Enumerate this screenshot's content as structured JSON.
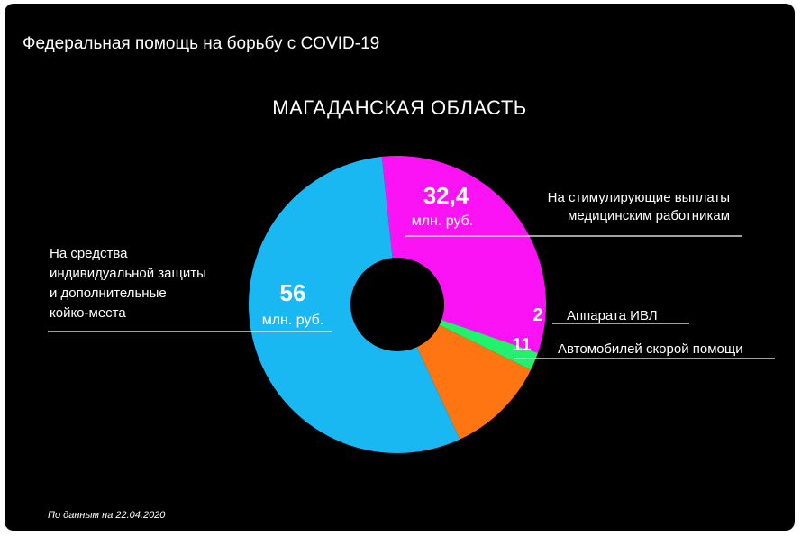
{
  "header": {
    "title": "Федеральная помощь на борьбу с COVID-19"
  },
  "colors": {
    "background": "#000000",
    "text": "#ffffff",
    "slice_protection": "#1ab8f2",
    "slice_payments": "#fb12f5",
    "slice_ventilators": "#22f26b",
    "slice_ambulances": "#ff7512"
  },
  "chart_data": {
    "type": "pie",
    "variant": "donut",
    "title": "МАГАДАНСКАЯ ОБЛАСТЬ",
    "slices": [
      {
        "label_lines": [
          "На стимулирующие выплаты",
          "медицинским работникам"
        ],
        "value": 32.4,
        "value_text": "32,4",
        "unit_text": "млн. руб.",
        "color": "#fb12f5"
      },
      {
        "label_lines": [
          "Аппарата ИВЛ"
        ],
        "value": 2,
        "value_text": "2",
        "unit_text": "",
        "color": "#22f26b"
      },
      {
        "label_lines": [
          "Автомобилей скорой помощи"
        ],
        "value": 11,
        "value_text": "11",
        "unit_text": "",
        "color": "#ff7512"
      },
      {
        "label_lines": [
          "На средства",
          "индивидуальной защиты",
          "и дополнительные",
          "койко-места"
        ],
        "value": 56,
        "value_text": "56",
        "unit_text": "млн. руб.",
        "color": "#1ab8f2"
      }
    ],
    "legend": "none"
  },
  "footer": {
    "note": "По данным на 22.04.2020"
  }
}
